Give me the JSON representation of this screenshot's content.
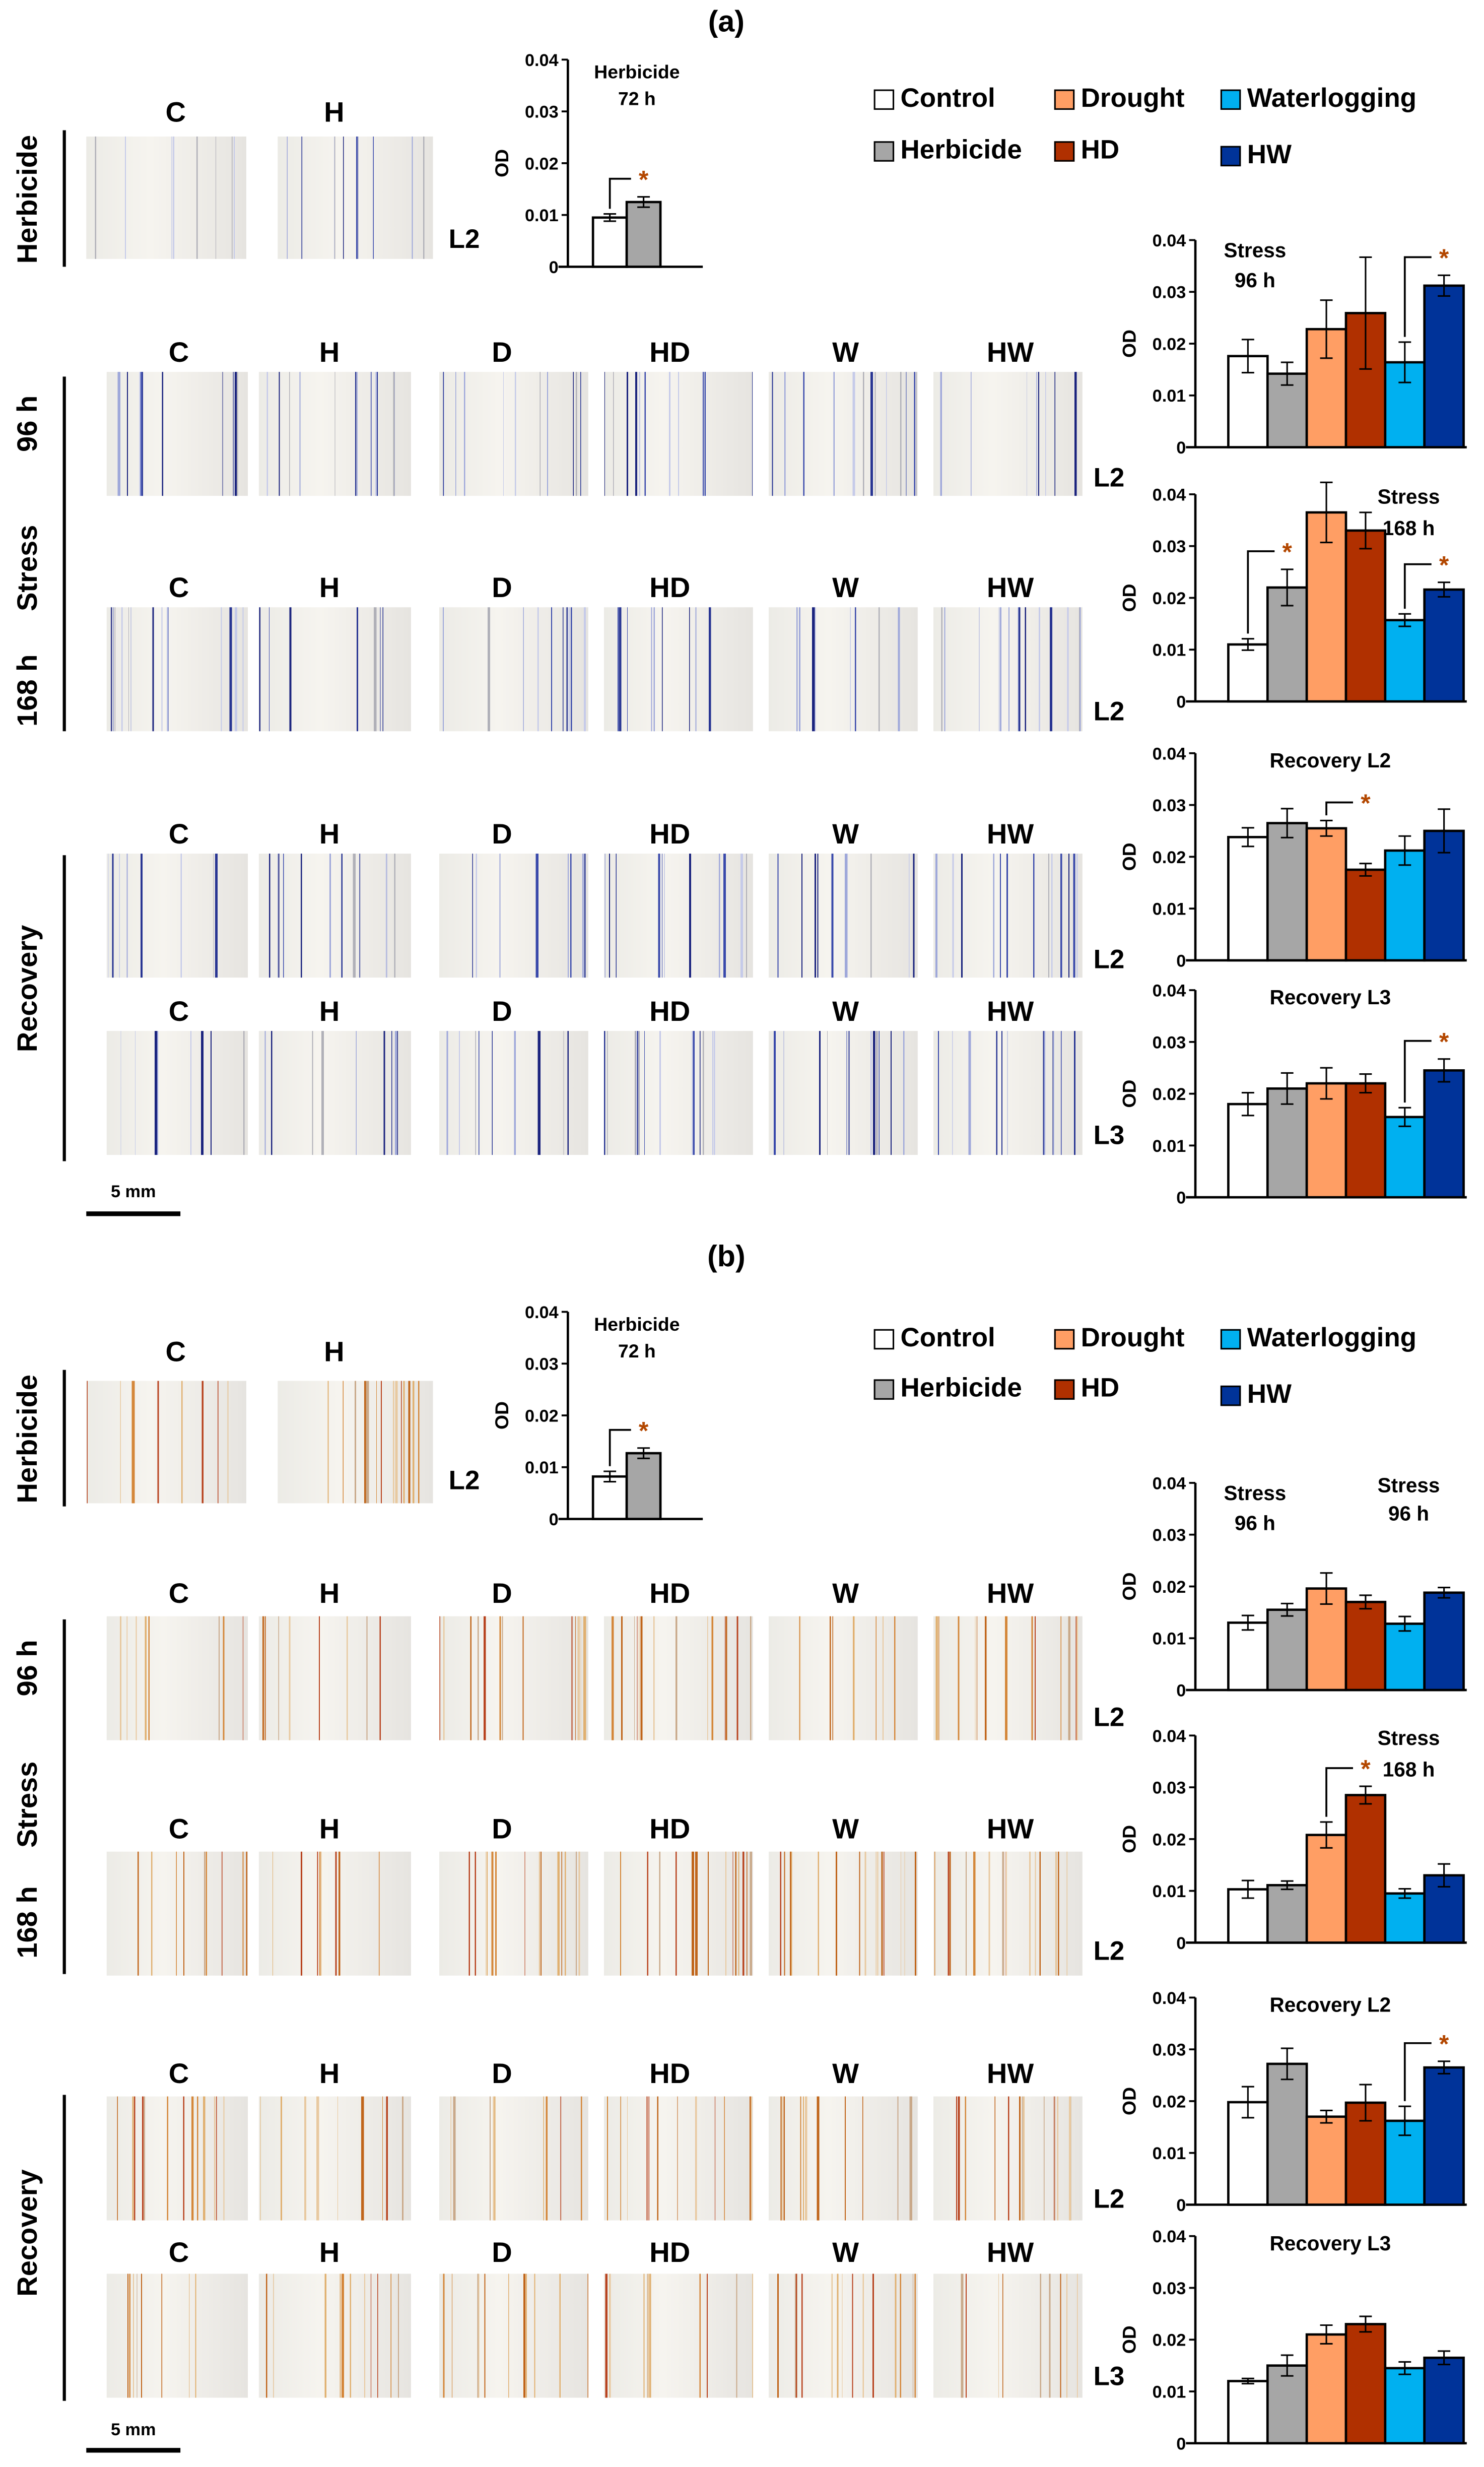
{
  "panels": [
    {
      "label": "(a)",
      "stain": "blue",
      "legend": [
        {
          "label": "Control",
          "color": "#ffffff"
        },
        {
          "label": "Drought",
          "color": "#ff9e64"
        },
        {
          "label": "Waterlogging",
          "color": "#00b0f0"
        },
        {
          "label": "Herbicide",
          "color": "#a6a6a6"
        },
        {
          "label": "HD",
          "color": "#b03000"
        },
        {
          "label": "HW",
          "color": "#003399"
        }
      ],
      "herbicide_row": {
        "side_label": "Herbicide",
        "columns": [
          "C",
          "H"
        ],
        "leaf": "L2"
      },
      "stress": {
        "side_labels": [
          "96 h",
          "Stress",
          "168 h"
        ],
        "columns": [
          "C",
          "H",
          "D",
          "HD",
          "W",
          "HW"
        ],
        "leaves": [
          "L2",
          "L2"
        ]
      },
      "recovery": {
        "side_label": "Recovery",
        "columns": [
          "C",
          "H",
          "D",
          "HD",
          "W",
          "HW"
        ],
        "leaves": [
          "L2",
          "L3"
        ]
      },
      "scale_bar": "5 mm"
    },
    {
      "label": "(b)",
      "stain": "orange",
      "legend": [
        {
          "label": "Control",
          "color": "#ffffff"
        },
        {
          "label": "Drought",
          "color": "#ff9e64"
        },
        {
          "label": "Waterlogging",
          "color": "#00b0f0"
        },
        {
          "label": "Herbicide",
          "color": "#a6a6a6"
        },
        {
          "label": "HD",
          "color": "#b03000"
        },
        {
          "label": "HW",
          "color": "#003399"
        }
      ],
      "herbicide_row": {
        "side_label": "Herbicide",
        "columns": [
          "C",
          "H"
        ],
        "leaf": "L2"
      },
      "stress": {
        "side_labels": [
          "96 h",
          "Stress",
          "168 h"
        ],
        "columns": [
          "C",
          "H",
          "D",
          "HD",
          "W",
          "HW"
        ],
        "leaves": [
          "L2",
          "L2"
        ]
      },
      "recovery": {
        "side_label": "Recovery",
        "columns": [
          "C",
          "H",
          "D",
          "HD",
          "W",
          "HW"
        ],
        "leaves": [
          "L2",
          "L3"
        ]
      },
      "scale_bar": "5 mm"
    }
  ],
  "chart_data": [
    {
      "type": "bar",
      "panel": "(a)",
      "title": [
        "Herbicide",
        "72 h"
      ],
      "title_position": "top-right",
      "ylabel": "OD",
      "ylim": [
        0,
        0.04
      ],
      "ytick_labels": [
        "0",
        "0.01",
        "0.02",
        "0.03",
        "0.04"
      ],
      "categories": [
        "Control",
        "Herbicide"
      ],
      "colors": [
        "#ffffff",
        "#a6a6a6"
      ],
      "values": [
        0.0095,
        0.0125
      ],
      "errors": [
        0.0007,
        0.001
      ],
      "significance": [
        {
          "from": 0,
          "to": 1,
          "label": "*"
        }
      ]
    },
    {
      "type": "bar",
      "panel": "(a)",
      "title": [
        "Stress",
        "96 h"
      ],
      "title_position": "top-left",
      "ylabel": "OD",
      "ylim": [
        0,
        0.04
      ],
      "ytick_labels": [
        "0",
        "0.01",
        "0.02",
        "0.03",
        "0.04"
      ],
      "categories": [
        "Control",
        "Herbicide",
        "Drought",
        "HD",
        "Waterlogging",
        "HW"
      ],
      "colors": [
        "#ffffff",
        "#a6a6a6",
        "#ff9e64",
        "#b03000",
        "#00b0f0",
        "#003399"
      ],
      "values": [
        0.0176,
        0.0142,
        0.0228,
        0.0259,
        0.0164,
        0.0312
      ],
      "errors": [
        0.0032,
        0.0022,
        0.0056,
        0.0108,
        0.0039,
        0.002
      ],
      "significance": [
        {
          "from": 4,
          "to": 5,
          "label": "*"
        }
      ]
    },
    {
      "type": "bar",
      "panel": "(a)",
      "title": [
        "Stress",
        "168 h"
      ],
      "title_position": "top-right",
      "ylabel": "OD",
      "ylim": [
        0,
        0.04
      ],
      "ytick_labels": [
        "0",
        "0.01",
        "0.02",
        "0.03",
        "0.04"
      ],
      "categories": [
        "Control",
        "Herbicide",
        "Drought",
        "HD",
        "Waterlogging",
        "HW"
      ],
      "colors": [
        "#ffffff",
        "#a6a6a6",
        "#ff9e64",
        "#b03000",
        "#00b0f0",
        "#003399"
      ],
      "values": [
        0.011,
        0.022,
        0.0365,
        0.033,
        0.0157,
        0.0216
      ],
      "errors": [
        0.0011,
        0.0035,
        0.0058,
        0.0035,
        0.0012,
        0.0014
      ],
      "significance": [
        {
          "from": 0,
          "to": 1,
          "label": "*"
        },
        {
          "from": 4,
          "to": 5,
          "label": "*"
        }
      ]
    },
    {
      "type": "bar",
      "panel": "(a)",
      "title": [
        "Recovery L2"
      ],
      "title_position": "top-center",
      "ylabel": "OD",
      "ylim": [
        0,
        0.04
      ],
      "ytick_labels": [
        "0",
        "0.01",
        "0.02",
        "0.03",
        "0.04"
      ],
      "categories": [
        "Control",
        "Herbicide",
        "Drought",
        "HD",
        "Waterlogging",
        "HW"
      ],
      "colors": [
        "#ffffff",
        "#a6a6a6",
        "#ff9e64",
        "#b03000",
        "#00b0f0",
        "#003399"
      ],
      "values": [
        0.0238,
        0.0265,
        0.0255,
        0.0175,
        0.0212,
        0.025
      ],
      "errors": [
        0.0018,
        0.0028,
        0.0015,
        0.0012,
        0.0028,
        0.0042
      ],
      "significance": [
        {
          "from": 2,
          "to": 3,
          "label": "*"
        }
      ]
    },
    {
      "type": "bar",
      "panel": "(a)",
      "title": [
        "Recovery L3"
      ],
      "title_position": "top-center",
      "ylabel": "OD",
      "ylim": [
        0,
        0.04
      ],
      "ytick_labels": [
        "0",
        "0.01",
        "0.02",
        "0.03",
        "0.04"
      ],
      "categories": [
        "Control",
        "Herbicide",
        "Drought",
        "HD",
        "Waterlogging",
        "HW"
      ],
      "colors": [
        "#ffffff",
        "#a6a6a6",
        "#ff9e64",
        "#b03000",
        "#00b0f0",
        "#003399"
      ],
      "values": [
        0.018,
        0.021,
        0.022,
        0.022,
        0.0155,
        0.0245
      ],
      "errors": [
        0.0022,
        0.003,
        0.003,
        0.0018,
        0.0018,
        0.0022
      ],
      "significance": [
        {
          "from": 4,
          "to": 5,
          "label": "*"
        }
      ]
    },
    {
      "type": "bar",
      "panel": "(b)",
      "title": [
        "Herbicide",
        "72 h"
      ],
      "title_position": "top-right",
      "ylabel": "OD",
      "ylim": [
        0,
        0.04
      ],
      "ytick_labels": [
        "0",
        "0.01",
        "0.02",
        "0.03",
        "0.04"
      ],
      "categories": [
        "Control",
        "Herbicide"
      ],
      "colors": [
        "#ffffff",
        "#a6a6a6"
      ],
      "values": [
        0.0082,
        0.0127
      ],
      "errors": [
        0.001,
        0.001
      ],
      "significance": [
        {
          "from": 0,
          "to": 1,
          "label": "*"
        }
      ]
    },
    {
      "type": "bar",
      "panel": "(b)",
      "title": [
        "Stress",
        "96 h"
      ],
      "title_position": "top-left",
      "extra_title": [
        "Stress",
        "96 h"
      ],
      "ylabel": "OD",
      "ylim": [
        0,
        0.04
      ],
      "ytick_labels": [
        "0",
        "0.01",
        "0.02",
        "0.03",
        "0.04"
      ],
      "categories": [
        "Control",
        "Herbicide",
        "Drought",
        "HD",
        "Waterlogging",
        "HW"
      ],
      "colors": [
        "#ffffff",
        "#a6a6a6",
        "#ff9e64",
        "#b03000",
        "#00b0f0",
        "#003399"
      ],
      "values": [
        0.013,
        0.0155,
        0.0196,
        0.017,
        0.0128,
        0.0188
      ],
      "errors": [
        0.0014,
        0.0012,
        0.003,
        0.0013,
        0.0014,
        0.001
      ],
      "significance": []
    },
    {
      "type": "bar",
      "panel": "(b)",
      "title": [
        "Stress",
        "168 h"
      ],
      "title_position": "top-right",
      "ylabel": "OD",
      "ylim": [
        0,
        0.04
      ],
      "ytick_labels": [
        "0",
        "0.01",
        "0.02",
        "0.03",
        "0.04"
      ],
      "categories": [
        "Control",
        "Herbicide",
        "Drought",
        "HD",
        "Waterlogging",
        "HW"
      ],
      "colors": [
        "#ffffff",
        "#a6a6a6",
        "#ff9e64",
        "#b03000",
        "#00b0f0",
        "#003399"
      ],
      "values": [
        0.0103,
        0.0111,
        0.0208,
        0.0285,
        0.0095,
        0.013
      ],
      "errors": [
        0.0017,
        0.0008,
        0.0025,
        0.0017,
        0.0009,
        0.0022
      ],
      "significance": [
        {
          "from": 2,
          "to": 3,
          "label": "*"
        }
      ]
    },
    {
      "type": "bar",
      "panel": "(b)",
      "title": [
        "Recovery L2"
      ],
      "title_position": "top-center",
      "ylabel": "OD",
      "ylim": [
        0,
        0.04
      ],
      "ytick_labels": [
        "0",
        "0.01",
        "0.02",
        "0.03",
        "0.04"
      ],
      "categories": [
        "Control",
        "Herbicide",
        "Drought",
        "HD",
        "Waterlogging",
        "HW"
      ],
      "colors": [
        "#ffffff",
        "#a6a6a6",
        "#ff9e64",
        "#b03000",
        "#00b0f0",
        "#003399"
      ],
      "values": [
        0.0198,
        0.0272,
        0.017,
        0.0197,
        0.0162,
        0.0265
      ],
      "errors": [
        0.003,
        0.003,
        0.0012,
        0.0035,
        0.0028,
        0.0012
      ],
      "significance": [
        {
          "from": 4,
          "to": 5,
          "label": "*"
        }
      ]
    },
    {
      "type": "bar",
      "panel": "(b)",
      "title": [
        "Recovery L3"
      ],
      "title_position": "top-center",
      "ylabel": "OD",
      "ylim": [
        0,
        0.04
      ],
      "ytick_labels": [
        "0",
        "0.01",
        "0.02",
        "0.03",
        "0.04"
      ],
      "categories": [
        "Control",
        "Herbicide",
        "Drought",
        "HD",
        "Waterlogging",
        "HW"
      ],
      "colors": [
        "#ffffff",
        "#a6a6a6",
        "#ff9e64",
        "#b03000",
        "#00b0f0",
        "#003399"
      ],
      "values": [
        0.012,
        0.015,
        0.021,
        0.023,
        0.0145,
        0.0165
      ],
      "errors": [
        0.0005,
        0.002,
        0.0018,
        0.0015,
        0.0012,
        0.0013
      ],
      "significance": []
    }
  ],
  "star_color": "#b34700"
}
